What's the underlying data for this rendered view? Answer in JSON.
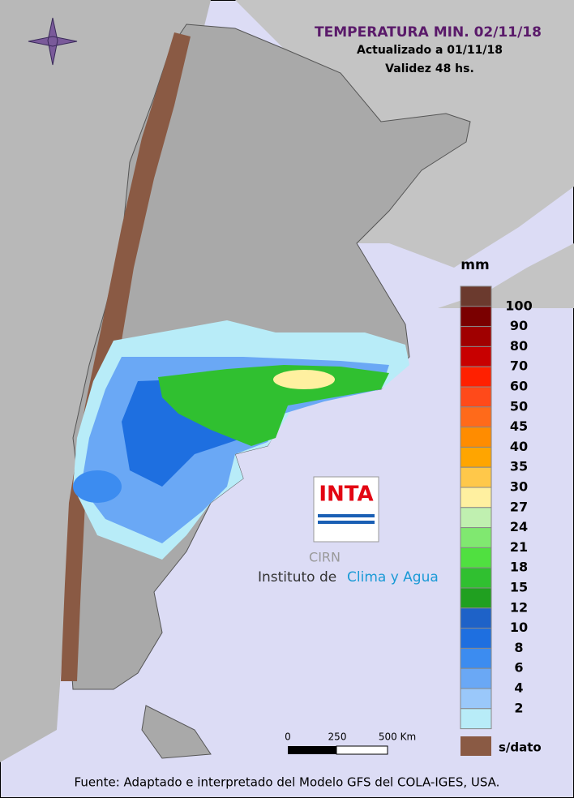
{
  "header": {
    "title": "TEMPERATURA MIN. 02/11/18",
    "updated": "Actualizado a 01/11/18",
    "validity": "Validez 48 hs."
  },
  "legend": {
    "unit": "mm",
    "top_color": "#6b3a2e",
    "items": [
      {
        "value": 100,
        "color": "#7a0000"
      },
      {
        "value": 90,
        "color": "#a00000"
      },
      {
        "value": 80,
        "color": "#c80000"
      },
      {
        "value": 70,
        "color": "#ff2000"
      },
      {
        "value": 60,
        "color": "#ff4a1a"
      },
      {
        "value": 50,
        "color": "#ff6a1a"
      },
      {
        "value": 45,
        "color": "#ff8c00"
      },
      {
        "value": 40,
        "color": "#ffa500"
      },
      {
        "value": 35,
        "color": "#ffc84a"
      },
      {
        "value": 30,
        "color": "#fff0a0"
      },
      {
        "value": 27,
        "color": "#c0f0b0"
      },
      {
        "value": 24,
        "color": "#80e870"
      },
      {
        "value": 21,
        "color": "#50e040"
      },
      {
        "value": 18,
        "color": "#30c030"
      },
      {
        "value": 15,
        "color": "#20a020"
      },
      {
        "value": 12,
        "color": "#1e62c8"
      },
      {
        "value": 10,
        "color": "#1e6fe0"
      },
      {
        "value": 8,
        "color": "#3c8cf0"
      },
      {
        "value": 6,
        "color": "#6aa8f5"
      },
      {
        "value": 4,
        "color": "#9ac8fa"
      },
      {
        "value": 2,
        "color": "#b8ecf8"
      }
    ],
    "nodata": "s/dato"
  },
  "scale": {
    "labels": [
      "0",
      "250",
      "500 Km"
    ]
  },
  "logo": {
    "inta": "INTA",
    "cirn": "CIRN",
    "institute": "Instituto de",
    "institute_highlight": "Clima y Agua"
  },
  "footer": "Fuente: Adaptado e interpretado del Modelo GFS del COLA-IGES, USA."
}
